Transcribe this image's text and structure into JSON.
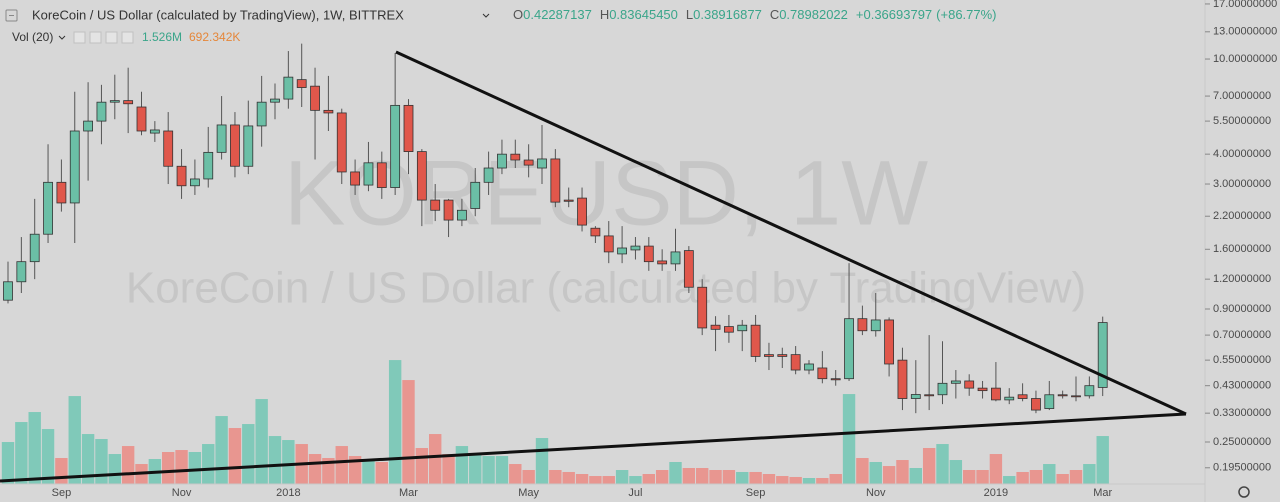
{
  "chart_data": {
    "type": "candlestick",
    "title": "KoreCoin / US Dollar (calculated by TradingView), 1W, BITTREX",
    "watermark": "KOREUSD, 1W",
    "watermark_subtitle": "KoreCoin / US Dollar (calculated by TradingView)",
    "readout": [
      {
        "prefix": "O",
        "value": 0.42287137,
        "label": "0.42287137"
      },
      {
        "prefix": "H",
        "value": 0.8364545,
        "label": "0.83645450"
      },
      {
        "prefix": "L",
        "value": 0.38916877,
        "label": "0.38916877"
      },
      {
        "prefix": "C",
        "value": 0.78982022,
        "label": "0.78982022"
      }
    ],
    "change": {
      "value": 0.36693797,
      "label": "+0.36693797"
    },
    "change_percent": {
      "value": 86.77,
      "label": "(+86.77%)"
    },
    "volume_indicator": "Vol (20)",
    "volume_readout": {
      "value": 1526000,
      "label": "1.526M"
    },
    "volume_ma_readout": {
      "value": 692342,
      "label": "692.342K"
    },
    "up_color": "#6bbfa6",
    "down_color": "#e0574b",
    "volume_up_color": "#80c9b9",
    "volume_down_color": "#e89690",
    "log_scale": true,
    "grid": false,
    "categories": [
      null,
      null,
      null,
      null,
      "Sep",
      null,
      null,
      null,
      null,
      null,
      null,
      null,
      null,
      "Nov",
      null,
      null,
      null,
      null,
      null,
      null,
      null,
      "2018",
      null,
      null,
      null,
      null,
      null,
      null,
      null,
      null,
      "Mar",
      null,
      null,
      null,
      null,
      null,
      null,
      null,
      null,
      "May",
      null,
      null,
      null,
      null,
      null,
      null,
      null,
      "Jul",
      null,
      null,
      null,
      null,
      null,
      null,
      null,
      null,
      "Sep",
      null,
      null,
      null,
      null,
      null,
      null,
      null,
      null,
      "Nov",
      null,
      null,
      null,
      null,
      null,
      null,
      null,
      null,
      "2019",
      null,
      null,
      null,
      null,
      null,
      null,
      null,
      "Mar"
    ],
    "open": [
      0.98,
      1.17,
      1.42,
      1.85,
      3.05,
      2.5,
      5.0,
      5.5,
      6.6,
      6.7,
      6.3,
      4.9,
      5.0,
      3.56,
      2.95,
      3.15,
      4.07,
      5.3,
      3.56,
      5.25,
      6.6,
      6.8,
      8.2,
      7.7,
      6.1,
      5.95,
      3.37,
      2.97,
      3.68,
      2.9,
      6.4,
      4.1,
      2.57,
      2.57,
      2.12,
      2.37,
      3.05,
      3.5,
      4.0,
      3.78,
      3.5,
      3.82,
      2.57,
      2.62,
      1.96,
      1.82,
      1.53,
      1.59,
      1.65,
      1.43,
      1.39,
      1.58,
      1.11,
      0.77,
      0.76,
      0.73,
      0.77,
      0.58,
      0.58,
      0.58,
      0.5,
      0.51,
      0.46,
      0.46,
      0.82,
      0.73,
      0.81,
      0.55,
      0.38,
      0.394,
      0.394,
      0.44,
      0.45,
      0.42,
      0.42,
      0.375,
      0.394,
      0.38,
      0.345,
      0.394,
      0.39,
      0.39,
      0.42287137
    ],
    "high": [
      1.42,
      1.8,
      2.6,
      4.4,
      3.8,
      7.3,
      8.0,
      7.8,
      8.6,
      9.2,
      7.3,
      5.5,
      6.0,
      4.2,
      3.8,
      5.2,
      7.0,
      6.0,
      6.7,
      8.5,
      7.9,
      10.8,
      11.6,
      9.2,
      8.5,
      6.2,
      3.8,
      4.5,
      4.1,
      10.6,
      6.8,
      4.2,
      3.0,
      2.6,
      2.6,
      3.5,
      4.1,
      4.6,
      4.6,
      4.4,
      5.3,
      4.2,
      2.9,
      2.9,
      2.0,
      2.1,
      2.0,
      1.8,
      1.8,
      1.6,
      1.95,
      1.65,
      1.2,
      0.84,
      0.85,
      0.81,
      0.85,
      0.65,
      0.62,
      0.63,
      0.55,
      0.6,
      0.5,
      1.4,
      0.93,
      1.05,
      0.83,
      0.62,
      0.55,
      0.7,
      0.66,
      0.5,
      0.48,
      0.45,
      0.54,
      0.42,
      0.44,
      0.41,
      0.45,
      0.41,
      0.47,
      0.47,
      0.8364545
    ],
    "low": [
      0.95,
      1.05,
      1.2,
      1.7,
      2.3,
      1.7,
      3.1,
      4.4,
      5.6,
      4.9,
      4.8,
      4.5,
      3.0,
      2.6,
      2.7,
      2.9,
      3.8,
      3.2,
      3.3,
      4.3,
      5.6,
      6.2,
      6.3,
      3.8,
      5.0,
      3.0,
      2.7,
      2.8,
      2.6,
      2.7,
      3.3,
      2.0,
      2.1,
      1.8,
      2.0,
      2.2,
      2.7,
      3.3,
      3.5,
      3.2,
      3.0,
      2.4,
      2.4,
      1.9,
      1.7,
      1.4,
      1.4,
      1.45,
      1.3,
      1.3,
      1.3,
      1.05,
      0.7,
      0.6,
      0.65,
      0.6,
      0.54,
      0.5,
      0.51,
      0.48,
      0.48,
      0.44,
      0.43,
      0.45,
      0.7,
      0.69,
      0.47,
      0.34,
      0.33,
      0.34,
      0.36,
      0.38,
      0.39,
      0.38,
      0.37,
      0.36,
      0.37,
      0.33,
      0.34,
      0.38,
      0.37,
      0.38,
      0.38916877
    ],
    "close": [
      1.17,
      1.42,
      1.85,
      3.05,
      2.5,
      5.0,
      5.5,
      6.6,
      6.7,
      6.5,
      5.0,
      5.05,
      3.56,
      2.95,
      3.15,
      4.07,
      5.3,
      3.56,
      5.25,
      6.6,
      6.8,
      8.4,
      7.6,
      6.1,
      5.95,
      3.37,
      2.97,
      3.68,
      2.9,
      6.4,
      4.1,
      2.57,
      2.33,
      2.12,
      2.33,
      3.05,
      3.5,
      4.0,
      3.78,
      3.6,
      3.82,
      2.52,
      2.54,
      2.02,
      1.82,
      1.56,
      1.62,
      1.65,
      1.42,
      1.39,
      1.56,
      1.11,
      0.75,
      0.74,
      0.72,
      0.77,
      0.57,
      0.57,
      0.57,
      0.5,
      0.53,
      0.46,
      0.455,
      0.82,
      0.73,
      0.81,
      0.53,
      0.38,
      0.395,
      0.39,
      0.44,
      0.45,
      0.42,
      0.41,
      0.375,
      0.385,
      0.38,
      0.34,
      0.394,
      0.39,
      0.388,
      0.43,
      0.78982022
    ],
    "volume": [
      1336000,
      1972000,
      2290000,
      1749000,
      827000,
      2798000,
      1590000,
      1431000,
      954000,
      1208000,
      636000,
      795000,
      1018000,
      1081000,
      1018000,
      1272000,
      2162000,
      1781000,
      1908000,
      2703000,
      1526000,
      1399000,
      1272000,
      954000,
      827000,
      1208000,
      890000,
      795000,
      700000,
      3943000,
      3307000,
      1145000,
      1590000,
      954000,
      1208000,
      954000,
      890000,
      890000,
      636000,
      445000,
      1463000,
      445000,
      382000,
      318000,
      254000,
      254000,
      445000,
      254000,
      318000,
      445000,
      700000,
      509000,
      509000,
      445000,
      445000,
      382000,
      382000,
      318000,
      254000,
      223000,
      191000,
      191000,
      318000,
      2862000,
      827000,
      700000,
      572000,
      763000,
      509000,
      1145000,
      1272000,
      763000,
      445000,
      445000,
      954000,
      254000,
      382000,
      445000,
      636000,
      318000,
      445000,
      636000,
      1526000
    ],
    "ylim": [
      0.1668,
      17.66
    ],
    "volume_ylim": [
      0,
      15400000
    ],
    "yticks": [
      {
        "value": 17,
        "label": "17.00000000"
      },
      {
        "value": 13,
        "label": "13.00000000"
      },
      {
        "value": 10,
        "label": "10.00000000"
      },
      {
        "value": 7,
        "label": "7.00000000"
      },
      {
        "value": 5.5,
        "label": "5.50000000"
      },
      {
        "value": 4,
        "label": "4.00000000"
      },
      {
        "value": 3,
        "label": "3.00000000"
      },
      {
        "value": 2.2,
        "label": "2.20000000"
      },
      {
        "value": 1.6,
        "label": "1.60000000"
      },
      {
        "value": 1.2,
        "label": "1.20000000"
      },
      {
        "value": 0.9,
        "label": "0.90000000"
      },
      {
        "value": 0.7,
        "label": "0.70000000"
      },
      {
        "value": 0.55,
        "label": "0.55000000"
      },
      {
        "value": 0.43,
        "label": "0.43000000"
      },
      {
        "value": 0.33,
        "label": "0.33000000"
      },
      {
        "value": 0.25,
        "label": "0.25000000"
      },
      {
        "value": 0.195,
        "label": "0.19500000"
      }
    ]
  }
}
